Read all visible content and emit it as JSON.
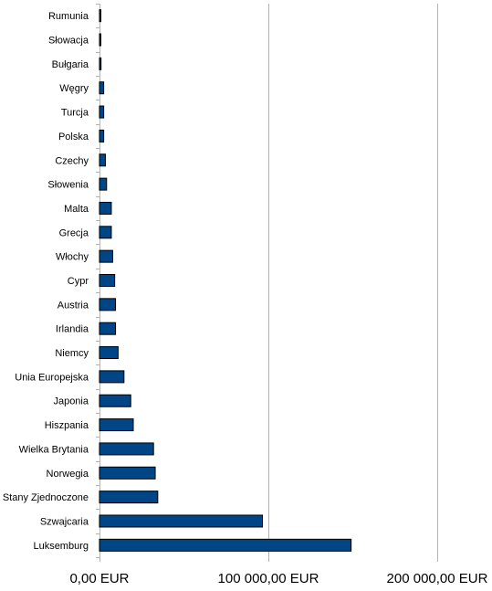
{
  "chart_data": {
    "type": "bar",
    "orientation": "horizontal",
    "categories": [
      "Rumunia",
      "Słowacja",
      "Bułgaria",
      "Węgry",
      "Turcja",
      "Polska",
      "Czechy",
      "Słowenia",
      "Malta",
      "Grecja",
      "Włochy",
      "Cypr",
      "Austria",
      "Irlandia",
      "Niemcy",
      "Unia Europejska",
      "Japonia",
      "Hiszpania",
      "Wielka Brytania",
      "Norwegia",
      "Stany Zjednoczone",
      "Szwajcaria",
      "Luksemburg"
    ],
    "values": [
      800,
      800,
      900,
      2500,
      2500,
      2500,
      3500,
      4200,
      7000,
      7000,
      7800,
      9000,
      9500,
      9500,
      11000,
      14500,
      18500,
      20000,
      32000,
      33000,
      34500,
      96500,
      149000
    ],
    "xlim": [
      0,
      200000
    ],
    "x_ticks": [
      0,
      100000,
      200000
    ],
    "x_tick_labels": [
      "0,00 EUR",
      "100 000,00 EUR",
      "200 000,00 EUR"
    ],
    "title": "",
    "xlabel": "",
    "ylabel": "",
    "grid": "vertical major gridlines",
    "legend": "none",
    "bar_color": "#004586",
    "bar_outline_color": "#000000",
    "grid_color": "#b3b3b3"
  }
}
